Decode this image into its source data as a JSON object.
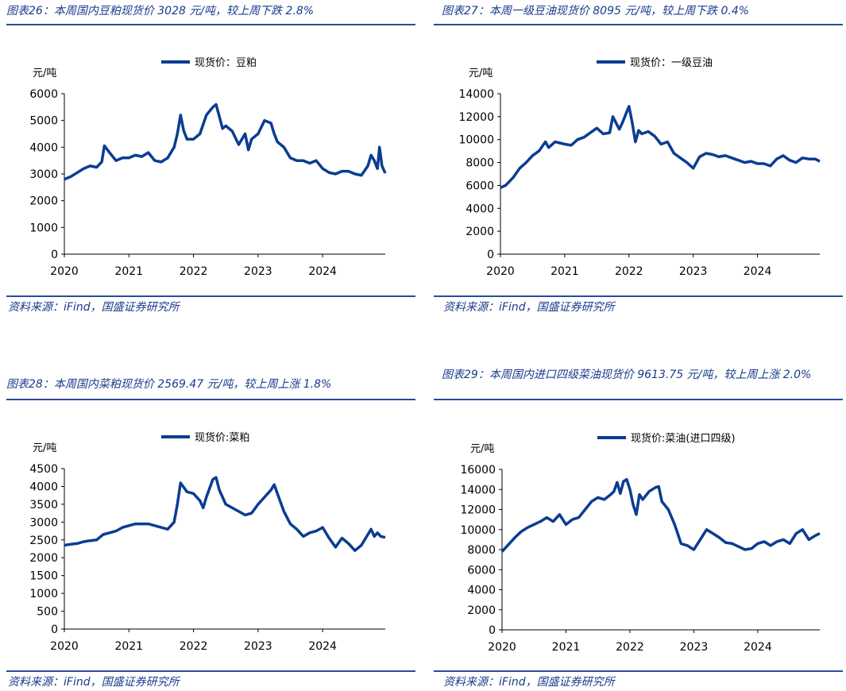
{
  "colors": {
    "title": "#1a3a8c",
    "rule": "#2c4a9a",
    "series": "#0b3d91"
  },
  "panels": [
    {
      "title": "图表26：本周国内豆粕现货价 3028 元/吨，较上周下跌 2.8%",
      "source": "资料来源：iFind，国盛证券研究所",
      "unit": "元/吨",
      "legend": "现货价：豆粕"
    },
    {
      "title": "图表27：本周一级豆油现货价 8095 元/吨，较上周下跌 0.4%",
      "source": "资料来源：iFind，国盛证券研究所",
      "unit": "元/吨",
      "legend": "现货价：一级豆油"
    },
    {
      "title": "图表28：本周国内菜粕现货价 2569.47 元/吨，较上周上涨 1.8%",
      "source": "资料来源：iFind，国盛证券研究所",
      "unit": "元/吨",
      "legend": "现货价:菜粕"
    },
    {
      "title": "图表29：本周国内进口四级菜油现货价 9613.75 元/吨，较上周上涨 2.0%",
      "source": "资料来源：iFind，国盛证券研究所",
      "unit": "元/吨",
      "legend": "现货价:菜油(进口四级)"
    }
  ],
  "chart_data": [
    {
      "type": "line",
      "ylabel": "元/吨",
      "ylim": [
        0,
        6000
      ],
      "yticks": [
        0,
        1000,
        2000,
        3000,
        4000,
        5000,
        6000
      ],
      "xlim": [
        2020,
        2024.97
      ],
      "xticks": [
        "2020",
        "2021",
        "2022",
        "2023",
        "2024"
      ],
      "series": [
        {
          "name": "现货价：豆粕",
          "x": [
            2020.0,
            2020.1,
            2020.2,
            2020.3,
            2020.4,
            2020.5,
            2020.58,
            2020.62,
            2020.7,
            2020.8,
            2020.9,
            2021.0,
            2021.1,
            2021.2,
            2021.3,
            2021.4,
            2021.5,
            2021.6,
            2021.7,
            2021.75,
            2021.8,
            2021.85,
            2021.9,
            2022.0,
            2022.1,
            2022.2,
            2022.3,
            2022.35,
            2022.45,
            2022.5,
            2022.6,
            2022.7,
            2022.8,
            2022.85,
            2022.9,
            2023.0,
            2023.1,
            2023.2,
            2023.25,
            2023.3,
            2023.4,
            2023.5,
            2023.6,
            2023.7,
            2023.8,
            2023.9,
            2024.0,
            2024.1,
            2024.2,
            2024.3,
            2024.4,
            2024.5,
            2024.6,
            2024.7,
            2024.75,
            2024.8,
            2024.85,
            2024.88,
            2024.92,
            2024.97
          ],
          "values": [
            2800,
            2900,
            3050,
            3200,
            3300,
            3250,
            3450,
            4050,
            3800,
            3500,
            3600,
            3600,
            3700,
            3650,
            3800,
            3500,
            3450,
            3600,
            4000,
            4500,
            5200,
            4600,
            4300,
            4300,
            4500,
            5200,
            5500,
            5600,
            4700,
            4800,
            4600,
            4100,
            4500,
            3900,
            4300,
            4500,
            5000,
            4900,
            4500,
            4200,
            4000,
            3600,
            3500,
            3500,
            3400,
            3500,
            3200,
            3050,
            3000,
            3100,
            3100,
            3000,
            2950,
            3300,
            3700,
            3500,
            3200,
            4000,
            3300,
            3028
          ]
        }
      ]
    },
    {
      "type": "line",
      "ylabel": "元/吨",
      "ylim": [
        0,
        14000
      ],
      "yticks": [
        0,
        2000,
        4000,
        6000,
        8000,
        10000,
        12000,
        14000
      ],
      "xlim": [
        2020,
        2024.97
      ],
      "xticks": [
        "2020",
        "2021",
        "2022",
        "2023",
        "2024"
      ],
      "series": [
        {
          "name": "现货价：一级豆油",
          "x": [
            2020.0,
            2020.08,
            2020.2,
            2020.3,
            2020.4,
            2020.5,
            2020.6,
            2020.7,
            2020.75,
            2020.85,
            2021.0,
            2021.1,
            2021.2,
            2021.3,
            2021.4,
            2021.5,
            2021.6,
            2021.7,
            2021.75,
            2021.85,
            2021.9,
            2021.95,
            2022.0,
            2022.05,
            2022.1,
            2022.15,
            2022.2,
            2022.3,
            2022.4,
            2022.5,
            2022.6,
            2022.7,
            2022.8,
            2022.9,
            2023.0,
            2023.1,
            2023.2,
            2023.3,
            2023.4,
            2023.5,
            2023.6,
            2023.7,
            2023.8,
            2023.9,
            2024.0,
            2024.1,
            2024.2,
            2024.3,
            2024.4,
            2024.5,
            2024.6,
            2024.7,
            2024.8,
            2024.9,
            2024.97
          ],
          "values": [
            5800,
            6000,
            6700,
            7500,
            8000,
            8600,
            9000,
            9800,
            9300,
            9800,
            9600,
            9500,
            10000,
            10200,
            10600,
            11000,
            10500,
            10600,
            12000,
            10900,
            11500,
            12200,
            12900,
            11500,
            9800,
            10800,
            10500,
            10700,
            10300,
            9600,
            9800,
            8800,
            8400,
            8000,
            7500,
            8500,
            8800,
            8700,
            8500,
            8600,
            8400,
            8200,
            8000,
            8100,
            7900,
            7900,
            7700,
            8300,
            8600,
            8200,
            8000,
            8400,
            8300,
            8300,
            8095
          ]
        }
      ]
    },
    {
      "type": "line",
      "ylabel": "元/吨",
      "ylim": [
        0,
        4500
      ],
      "yticks": [
        0,
        500,
        1000,
        1500,
        2000,
        2500,
        3000,
        3500,
        4000,
        4500
      ],
      "xlim": [
        2020,
        2024.97
      ],
      "xticks": [
        "2020",
        "2021",
        "2022",
        "2023",
        "2024"
      ],
      "series": [
        {
          "name": "现货价:菜粕",
          "x": [
            2020.0,
            2020.1,
            2020.2,
            2020.3,
            2020.4,
            2020.5,
            2020.6,
            2020.7,
            2020.8,
            2020.9,
            2021.0,
            2021.1,
            2021.2,
            2021.3,
            2021.4,
            2021.5,
            2021.6,
            2021.7,
            2021.75,
            2021.8,
            2021.9,
            2022.0,
            2022.1,
            2022.15,
            2022.2,
            2022.3,
            2022.35,
            2022.4,
            2022.5,
            2022.6,
            2022.7,
            2022.8,
            2022.9,
            2023.0,
            2023.1,
            2023.2,
            2023.25,
            2023.3,
            2023.4,
            2023.5,
            2023.6,
            2023.7,
            2023.8,
            2023.9,
            2024.0,
            2024.1,
            2024.2,
            2024.3,
            2024.4,
            2024.5,
            2024.6,
            2024.7,
            2024.75,
            2024.8,
            2024.85,
            2024.9,
            2024.97
          ],
          "values": [
            2350,
            2380,
            2400,
            2450,
            2480,
            2500,
            2650,
            2700,
            2750,
            2850,
            2900,
            2950,
            2950,
            2950,
            2900,
            2850,
            2800,
            3000,
            3500,
            4100,
            3850,
            3800,
            3600,
            3400,
            3700,
            4200,
            4250,
            3900,
            3500,
            3400,
            3300,
            3200,
            3250,
            3500,
            3700,
            3900,
            4050,
            3800,
            3300,
            2950,
            2800,
            2600,
            2700,
            2750,
            2850,
            2550,
            2300,
            2550,
            2400,
            2200,
            2350,
            2650,
            2800,
            2600,
            2700,
            2600,
            2569
          ]
        }
      ]
    },
    {
      "type": "line",
      "ylabel": "元/吨",
      "ylim": [
        0,
        16000
      ],
      "yticks": [
        0,
        2000,
        4000,
        6000,
        8000,
        10000,
        12000,
        14000,
        16000
      ],
      "xlim": [
        2020,
        2024.97
      ],
      "xticks": [
        "2020",
        "2021",
        "2022",
        "2023",
        "2024"
      ],
      "series": [
        {
          "name": "现货价:菜油(进口四级)",
          "x": [
            2020.0,
            2020.1,
            2020.2,
            2020.3,
            2020.4,
            2020.5,
            2020.6,
            2020.7,
            2020.8,
            2020.9,
            2021.0,
            2021.1,
            2021.2,
            2021.3,
            2021.4,
            2021.5,
            2021.6,
            2021.7,
            2021.75,
            2021.8,
            2021.85,
            2021.9,
            2021.95,
            2022.0,
            2022.05,
            2022.1,
            2022.15,
            2022.2,
            2022.3,
            2022.4,
            2022.45,
            2022.5,
            2022.6,
            2022.7,
            2022.8,
            2022.9,
            2022.95,
            2023.0,
            2023.1,
            2023.2,
            2023.3,
            2023.4,
            2023.5,
            2023.6,
            2023.7,
            2023.8,
            2023.9,
            2024.0,
            2024.1,
            2024.2,
            2024.3,
            2024.4,
            2024.5,
            2024.6,
            2024.7,
            2024.8,
            2024.9,
            2024.97
          ],
          "values": [
            7800,
            8500,
            9200,
            9800,
            10200,
            10500,
            10800,
            11200,
            10800,
            11500,
            10500,
            11000,
            11200,
            12000,
            12800,
            13200,
            13000,
            13500,
            13800,
            14700,
            13600,
            14800,
            15000,
            14000,
            12500,
            11500,
            13500,
            13000,
            13800,
            14200,
            14300,
            12800,
            12000,
            10500,
            8600,
            8400,
            8200,
            8000,
            9000,
            10000,
            9600,
            9200,
            8700,
            8600,
            8300,
            8000,
            8100,
            8600,
            8800,
            8400,
            8800,
            9000,
            8600,
            9600,
            10000,
            9000,
            9400,
            9614
          ]
        }
      ]
    }
  ]
}
